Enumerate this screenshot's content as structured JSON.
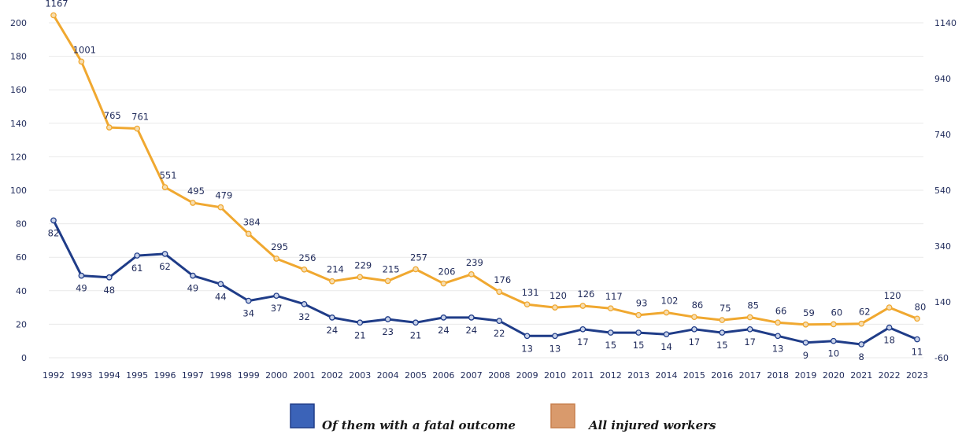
{
  "chart_data": {
    "type": "line",
    "categories": [
      "1992",
      "1993",
      "1994",
      "1995",
      "1996",
      "1997",
      "1998",
      "1999",
      "2000",
      "2001",
      "2002",
      "2003",
      "2004",
      "2005",
      "2006",
      "2007",
      "2008",
      "2009",
      "2010",
      "2011",
      "2012",
      "2013",
      "2014",
      "2015",
      "2016",
      "2017",
      "2018",
      "2019",
      "2020",
      "2021",
      "2022",
      "2023"
    ],
    "y_left_ticks": [
      "0",
      "20",
      "40",
      "60",
      "80",
      "100",
      "120",
      "140",
      "160",
      "180",
      "200"
    ],
    "y_right_ticks": [
      "-60",
      "140",
      "340",
      "540",
      "740",
      "940",
      "1140"
    ],
    "ylim_left": [
      0,
      200
    ],
    "ylim_right": [
      -60,
      1140
    ],
    "grid": true,
    "legend_position": "bottom-center",
    "series": [
      {
        "name": "Of them with a fatal outcome",
        "axis": "left",
        "color": "#1f3c88",
        "legend_color": "#3b63b8",
        "values": [
          82,
          49,
          48,
          61,
          62,
          49,
          44,
          34,
          37,
          32,
          24,
          21,
          23,
          21,
          24,
          24,
          22,
          13,
          13,
          17,
          15,
          15,
          14,
          17,
          15,
          17,
          13,
          9,
          10,
          8,
          18,
          11
        ]
      },
      {
        "name": "All injured workers",
        "axis": "right",
        "color": "#f0a830",
        "legend_color": "#d99a6c",
        "values": [
          1167,
          1001,
          765,
          761,
          551,
          495,
          479,
          384,
          295,
          256,
          214,
          229,
          215,
          257,
          206,
          239,
          176,
          131,
          120,
          126,
          117,
          93,
          102,
          86,
          75,
          85,
          66,
          59,
          60,
          62,
          120,
          80
        ]
      }
    ]
  }
}
